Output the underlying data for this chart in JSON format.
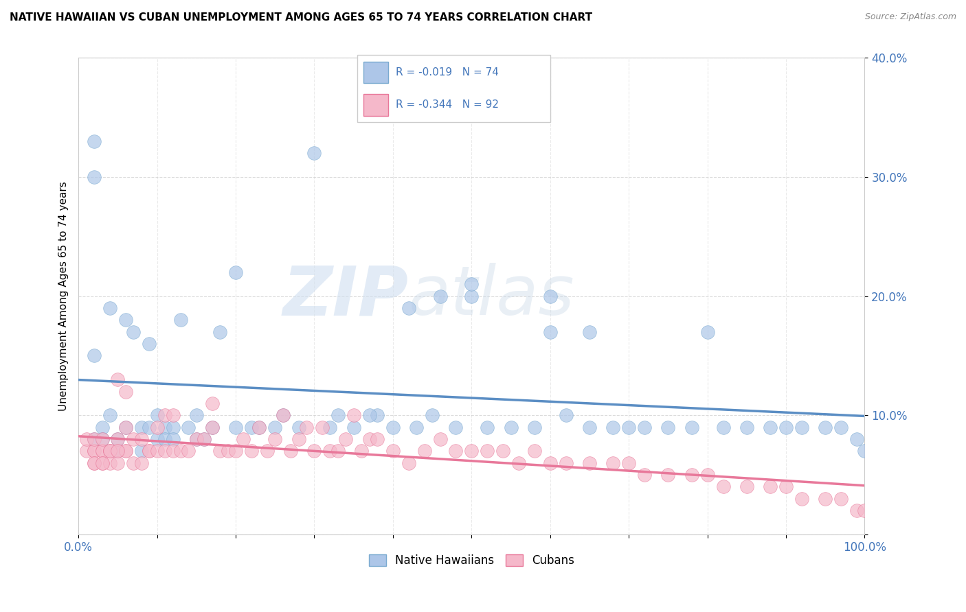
{
  "title": "NATIVE HAWAIIAN VS CUBAN UNEMPLOYMENT AMONG AGES 65 TO 74 YEARS CORRELATION CHART",
  "source": "Source: ZipAtlas.com",
  "ylabel": "Unemployment Among Ages 65 to 74 years",
  "xlim": [
    0,
    1.0
  ],
  "ylim": [
    0,
    0.4
  ],
  "xticks": [
    0.0,
    0.1,
    0.2,
    0.3,
    0.4,
    0.5,
    0.6,
    0.7,
    0.8,
    0.9,
    1.0
  ],
  "xticklabels": [
    "0.0%",
    "",
    "",
    "",
    "",
    "",
    "",
    "",
    "",
    "",
    "100.0%"
  ],
  "yticks": [
    0.0,
    0.1,
    0.2,
    0.3,
    0.4
  ],
  "yticklabels": [
    "",
    "10.0%",
    "20.0%",
    "30.0%",
    "40.0%"
  ],
  "native_hawaiian_face_color": "#adc6e8",
  "native_hawaiian_edge_color": "#7aaad0",
  "cuban_face_color": "#f5b8ca",
  "cuban_edge_color": "#e8789a",
  "trend_blue": "#5b8ec4",
  "trend_pink": "#e8789a",
  "legend_text_color": "#4477bb",
  "tick_color": "#4477bb",
  "R_hawaiian": -0.019,
  "N_hawaiian": 74,
  "R_cuban": -0.344,
  "N_cuban": 92,
  "legend_label_hawaiian": "Native Hawaiians",
  "legend_label_cuban": "Cubans",
  "watermark_zip": "ZIP",
  "watermark_atlas": "atlas",
  "native_hawaiian_x": [
    0.02,
    0.02,
    0.02,
    0.03,
    0.04,
    0.05,
    0.06,
    0.08,
    0.09,
    0.1,
    0.11,
    0.12,
    0.14,
    0.15,
    0.17,
    0.2,
    0.22,
    0.25,
    0.26,
    0.3,
    0.33,
    0.35,
    0.38,
    0.4,
    0.42,
    0.45,
    0.46,
    0.48,
    0.5,
    0.52,
    0.55,
    0.58,
    0.6,
    0.62,
    0.65,
    0.68,
    0.7,
    0.72,
    0.75,
    0.78,
    0.8,
    0.82,
    0.85,
    0.88,
    0.9,
    0.92,
    0.95,
    0.97,
    0.99,
    1.0,
    0.02,
    0.03,
    0.04,
    0.05,
    0.06,
    0.07,
    0.08,
    0.09,
    0.1,
    0.11,
    0.12,
    0.13,
    0.15,
    0.16,
    0.18,
    0.2,
    0.23,
    0.28,
    0.32,
    0.37,
    0.43,
    0.5,
    0.6,
    0.65
  ],
  "native_hawaiian_y": [
    0.33,
    0.3,
    0.15,
    0.09,
    0.1,
    0.08,
    0.09,
    0.09,
    0.09,
    0.1,
    0.09,
    0.09,
    0.09,
    0.1,
    0.09,
    0.22,
    0.09,
    0.09,
    0.1,
    0.32,
    0.1,
    0.09,
    0.1,
    0.09,
    0.19,
    0.1,
    0.2,
    0.09,
    0.2,
    0.09,
    0.09,
    0.09,
    0.17,
    0.1,
    0.09,
    0.09,
    0.09,
    0.09,
    0.09,
    0.09,
    0.17,
    0.09,
    0.09,
    0.09,
    0.09,
    0.09,
    0.09,
    0.09,
    0.08,
    0.07,
    0.08,
    0.08,
    0.19,
    0.07,
    0.18,
    0.17,
    0.07,
    0.16,
    0.08,
    0.08,
    0.08,
    0.18,
    0.08,
    0.08,
    0.17,
    0.09,
    0.09,
    0.09,
    0.09,
    0.1,
    0.09,
    0.21,
    0.2,
    0.17
  ],
  "cuban_x": [
    0.01,
    0.01,
    0.02,
    0.02,
    0.02,
    0.02,
    0.03,
    0.03,
    0.03,
    0.03,
    0.04,
    0.04,
    0.04,
    0.05,
    0.05,
    0.05,
    0.05,
    0.06,
    0.06,
    0.06,
    0.06,
    0.07,
    0.07,
    0.08,
    0.08,
    0.09,
    0.09,
    0.1,
    0.1,
    0.11,
    0.11,
    0.12,
    0.12,
    0.13,
    0.14,
    0.15,
    0.16,
    0.17,
    0.17,
    0.18,
    0.19,
    0.2,
    0.21,
    0.22,
    0.23,
    0.24,
    0.25,
    0.26,
    0.27,
    0.28,
    0.29,
    0.3,
    0.31,
    0.32,
    0.33,
    0.34,
    0.35,
    0.36,
    0.37,
    0.38,
    0.4,
    0.42,
    0.44,
    0.46,
    0.48,
    0.5,
    0.52,
    0.54,
    0.56,
    0.58,
    0.6,
    0.62,
    0.65,
    0.68,
    0.7,
    0.72,
    0.75,
    0.78,
    0.8,
    0.82,
    0.85,
    0.88,
    0.9,
    0.92,
    0.95,
    0.97,
    0.99,
    1.0,
    0.02,
    0.03,
    0.04,
    0.05
  ],
  "cuban_y": [
    0.07,
    0.08,
    0.07,
    0.07,
    0.08,
    0.06,
    0.07,
    0.07,
    0.08,
    0.06,
    0.07,
    0.06,
    0.07,
    0.13,
    0.07,
    0.08,
    0.06,
    0.07,
    0.09,
    0.07,
    0.12,
    0.08,
    0.06,
    0.08,
    0.06,
    0.07,
    0.07,
    0.09,
    0.07,
    0.07,
    0.1,
    0.07,
    0.1,
    0.07,
    0.07,
    0.08,
    0.08,
    0.09,
    0.11,
    0.07,
    0.07,
    0.07,
    0.08,
    0.07,
    0.09,
    0.07,
    0.08,
    0.1,
    0.07,
    0.08,
    0.09,
    0.07,
    0.09,
    0.07,
    0.07,
    0.08,
    0.1,
    0.07,
    0.08,
    0.08,
    0.07,
    0.06,
    0.07,
    0.08,
    0.07,
    0.07,
    0.07,
    0.07,
    0.06,
    0.07,
    0.06,
    0.06,
    0.06,
    0.06,
    0.06,
    0.05,
    0.05,
    0.05,
    0.05,
    0.04,
    0.04,
    0.04,
    0.04,
    0.03,
    0.03,
    0.03,
    0.02,
    0.02,
    0.06,
    0.06,
    0.07,
    0.07
  ]
}
